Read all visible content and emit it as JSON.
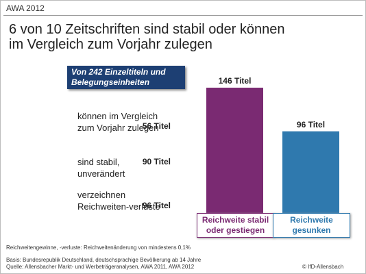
{
  "header": "AWA 2012",
  "chart_data": {
    "type": "bar",
    "title": [
      "6 von 10 Zeitschriften sind stabil oder können",
      "im Vergleich zum Vorjahr zulegen"
    ],
    "categories": [
      "Reichweite stabil oder gestiegen",
      "Reichweite gesunken"
    ],
    "values": [
      146,
      96
    ],
    "value_labels": [
      "146 Titel",
      "96 Titel"
    ],
    "colors": [
      "#7a2a72",
      "#2f79ae"
    ]
  },
  "breakdown": {
    "heading": "Von 242 Einzeltiteln und Belegungseinheiten",
    "rows": [
      {
        "label": "können im Vergleich zum Vorjahr zulegen",
        "value": "56 Titel"
      },
      {
        "label": "sind stabil, unverändert",
        "value": "90 Titel"
      },
      {
        "label": "verzeichnen Reichweiten-verluste",
        "value": "96 Titel"
      }
    ]
  },
  "note": "Reichweitengewinne, -verluste: Reichweitenänderung von mindestens 0,1%",
  "footer": {
    "basis": "Basis: Bundesrepublik Deutschland, deutschsprachige Bevölkerung ab 14 Jahre",
    "source": "Quelle: Allensbacher Markt- und Werbeträgeranalysen, AWA 2011, AWA 2012",
    "copyright": "© IfD-Allensbach"
  }
}
